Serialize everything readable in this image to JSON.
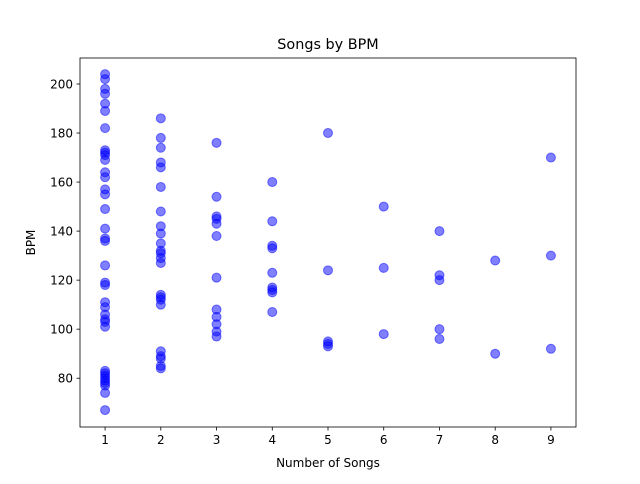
{
  "chart_data": {
    "type": "scatter",
    "title": "Songs by BPM",
    "xlabel": "Number of Songs",
    "ylabel": "BPM",
    "xlim": [
      0.55,
      9.45
    ],
    "ylim": [
      60.1,
      210.6
    ],
    "xticks": [
      1,
      2,
      3,
      4,
      5,
      6,
      7,
      8,
      9
    ],
    "yticks": [
      80,
      100,
      120,
      140,
      160,
      180,
      200
    ],
    "grid": false,
    "marker_color": "#0000ff",
    "marker_alpha": 0.5,
    "points": [
      [
        1,
        204
      ],
      [
        1,
        202
      ],
      [
        1,
        198
      ],
      [
        1,
        196
      ],
      [
        1,
        192
      ],
      [
        1,
        189
      ],
      [
        1,
        182
      ],
      [
        1,
        173
      ],
      [
        1,
        172
      ],
      [
        1,
        171
      ],
      [
        1,
        169
      ],
      [
        1,
        164
      ],
      [
        1,
        162
      ],
      [
        1,
        157
      ],
      [
        1,
        155
      ],
      [
        1,
        149
      ],
      [
        1,
        141
      ],
      [
        1,
        137
      ],
      [
        1,
        136
      ],
      [
        1,
        126
      ],
      [
        1,
        119
      ],
      [
        1,
        118
      ],
      [
        1,
        111
      ],
      [
        1,
        109
      ],
      [
        1,
        106
      ],
      [
        1,
        104
      ],
      [
        1,
        103
      ],
      [
        1,
        101
      ],
      [
        1,
        83
      ],
      [
        1,
        82
      ],
      [
        1,
        81
      ],
      [
        1,
        80
      ],
      [
        1,
        79
      ],
      [
        1,
        78
      ],
      [
        1,
        77
      ],
      [
        1,
        74
      ],
      [
        1,
        67
      ],
      [
        2,
        186
      ],
      [
        2,
        178
      ],
      [
        2,
        174
      ],
      [
        2,
        168
      ],
      [
        2,
        166
      ],
      [
        2,
        158
      ],
      [
        2,
        148
      ],
      [
        2,
        142
      ],
      [
        2,
        139
      ],
      [
        2,
        135
      ],
      [
        2,
        132
      ],
      [
        2,
        131
      ],
      [
        2,
        129
      ],
      [
        2,
        127
      ],
      [
        2,
        114
      ],
      [
        2,
        113
      ],
      [
        2,
        112
      ],
      [
        2,
        110
      ],
      [
        2,
        91
      ],
      [
        2,
        89
      ],
      [
        2,
        88
      ],
      [
        2,
        85
      ],
      [
        2,
        84
      ],
      [
        3,
        176
      ],
      [
        3,
        154
      ],
      [
        3,
        146
      ],
      [
        3,
        145
      ],
      [
        3,
        143
      ],
      [
        3,
        138
      ],
      [
        3,
        121
      ],
      [
        3,
        108
      ],
      [
        3,
        105
      ],
      [
        3,
        102
      ],
      [
        3,
        99
      ],
      [
        3,
        97
      ],
      [
        4,
        160
      ],
      [
        4,
        144
      ],
      [
        4,
        134
      ],
      [
        4,
        133
      ],
      [
        4,
        123
      ],
      [
        4,
        117
      ],
      [
        4,
        116
      ],
      [
        4,
        115
      ],
      [
        4,
        107
      ],
      [
        5,
        180
      ],
      [
        5,
        124
      ],
      [
        5,
        95
      ],
      [
        5,
        94
      ],
      [
        5,
        93
      ],
      [
        6,
        150
      ],
      [
        6,
        125
      ],
      [
        6,
        98
      ],
      [
        7,
        140
      ],
      [
        7,
        122
      ],
      [
        7,
        120
      ],
      [
        7,
        100
      ],
      [
        7,
        96
      ],
      [
        8,
        128
      ],
      [
        8,
        90
      ],
      [
        9,
        170
      ],
      [
        9,
        130
      ],
      [
        9,
        92
      ]
    ]
  }
}
